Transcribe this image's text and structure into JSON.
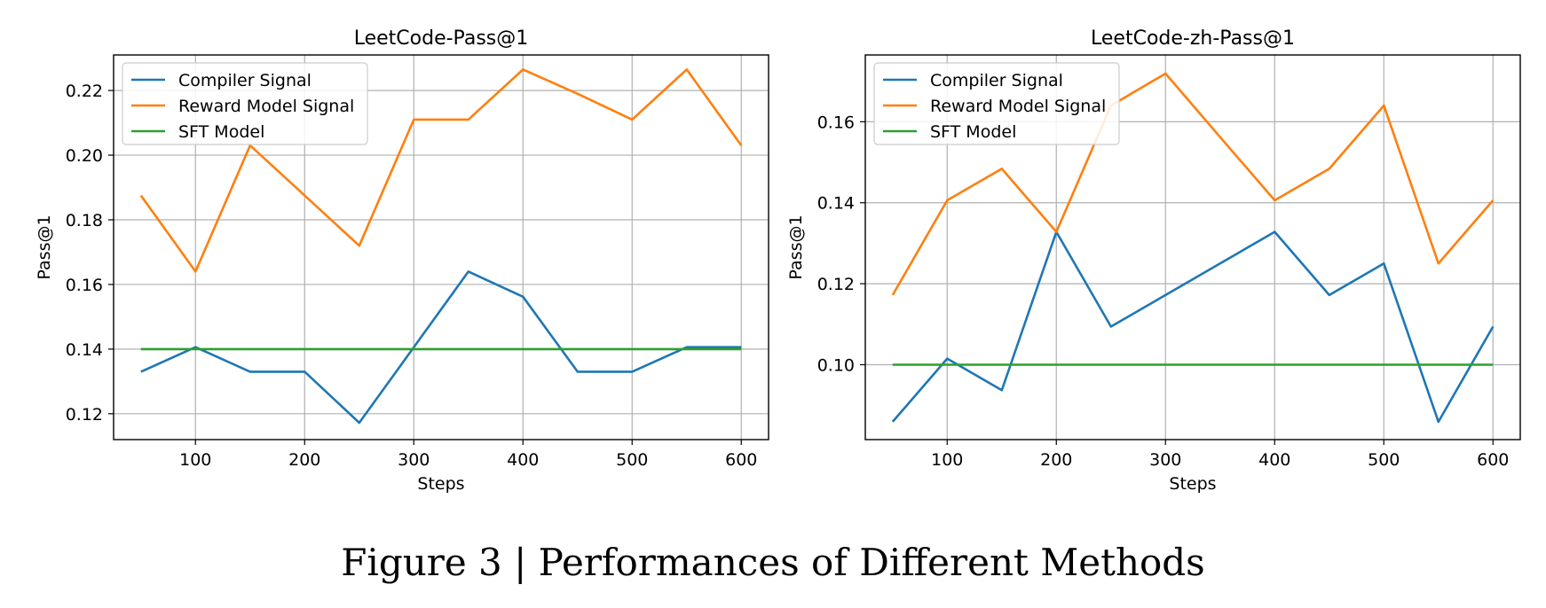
{
  "caption": "Figure 3 | Performances of Different Methods",
  "colors": {
    "compiler": "#1f77b4",
    "reward": "#ff7f0e",
    "sft": "#2ca02c"
  },
  "chart_data": [
    {
      "type": "line",
      "title": "LeetCode-Pass@1",
      "xlabel": "Steps",
      "ylabel": "Pass@1",
      "xlim": [
        25,
        625
      ],
      "ylim": [
        0.112,
        0.231
      ],
      "xticks": [
        100,
        200,
        300,
        400,
        500,
        600
      ],
      "xtick_labels": [
        "100",
        "200",
        "300",
        "400",
        "500",
        "600"
      ],
      "yticks": [
        0.12,
        0.14,
        0.16,
        0.18,
        0.2,
        0.22
      ],
      "ytick_labels": [
        "0.12",
        "0.14",
        "0.16",
        "0.18",
        "0.20",
        "0.22"
      ],
      "grid": true,
      "legend": "upper-left",
      "x": [
        50,
        100,
        150,
        200,
        250,
        300,
        350,
        400,
        450,
        500,
        550,
        600
      ],
      "series": [
        {
          "name": "Compiler Signal",
          "color_key": "compiler",
          "values": [
            0.133,
            0.1406,
            0.133,
            0.133,
            0.1172,
            0.1406,
            0.164,
            0.1562,
            0.133,
            0.133,
            0.1406,
            0.1406
          ]
        },
        {
          "name": "Reward Model Signal",
          "color_key": "reward",
          "values": [
            0.1875,
            0.164,
            0.203,
            0.1875,
            0.172,
            0.211,
            0.211,
            0.2265,
            0.219,
            0.211,
            0.2265,
            0.203
          ]
        },
        {
          "name": "SFT Model",
          "color_key": "sft",
          "values": [
            0.14,
            0.14,
            0.14,
            0.14,
            0.14,
            0.14,
            0.14,
            0.14,
            0.14,
            0.14,
            0.14,
            0.14
          ]
        }
      ]
    },
    {
      "type": "line",
      "title": "LeetCode-zh-Pass@1",
      "xlabel": "Steps",
      "ylabel": "Pass@1",
      "xlim": [
        25,
        625
      ],
      "ylim": [
        0.0815,
        0.1765
      ],
      "xticks": [
        100,
        200,
        300,
        400,
        500,
        600
      ],
      "xtick_labels": [
        "100",
        "200",
        "300",
        "400",
        "500",
        "600"
      ],
      "yticks": [
        0.1,
        0.12,
        0.14,
        0.16
      ],
      "ytick_labels": [
        "0.10",
        "0.12",
        "0.14",
        "0.16"
      ],
      "grid": true,
      "legend": "upper-left",
      "x": [
        50,
        100,
        150,
        200,
        250,
        300,
        350,
        400,
        450,
        500,
        550,
        600
      ],
      "series": [
        {
          "name": "Compiler Signal",
          "color_key": "compiler",
          "values": [
            0.0859,
            0.1015,
            0.0937,
            0.1328,
            0.1094,
            0.1172,
            0.125,
            0.1328,
            0.1172,
            0.125,
            0.0859,
            0.1094
          ]
        },
        {
          "name": "Reward Model Signal",
          "color_key": "reward",
          "values": [
            0.1172,
            0.1406,
            0.1484,
            0.1328,
            0.164,
            0.1719,
            0.1562,
            0.1406,
            0.1484,
            0.164,
            0.125,
            0.1406
          ]
        },
        {
          "name": "SFT Model",
          "color_key": "sft",
          "values": [
            0.1,
            0.1,
            0.1,
            0.1,
            0.1,
            0.1,
            0.1,
            0.1,
            0.1,
            0.1,
            0.1,
            0.1
          ]
        }
      ]
    }
  ]
}
